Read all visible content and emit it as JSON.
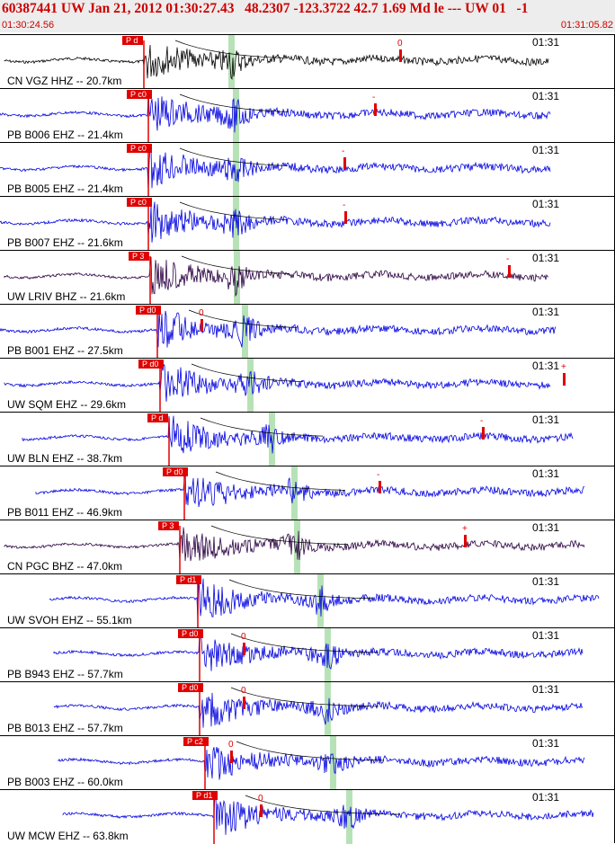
{
  "header": {
    "title": "60387441 UW Jan 21, 2012 01:30:27.43   48.2307 -123.3722 42.7 1.69 Md le --- UW 01   -1",
    "start_time": "01:30:24.56",
    "end_time": "01:31:05.82"
  },
  "traces": [
    {
      "label": "CN VGZ HHZ -- 20.7km",
      "time": "01:31",
      "pick": "P d",
      "marker": "0",
      "color": "#000000"
    },
    {
      "label": "PB B006 EHZ -- 21.4km",
      "time": "01:31",
      "pick": "P c0",
      "marker": "-",
      "color": "#0000e0"
    },
    {
      "label": "PB B005 EHZ -- 21.4km",
      "time": "01:31",
      "pick": "P c0",
      "marker": "-",
      "color": "#0000e0"
    },
    {
      "label": "PB B007 EHZ -- 21.6km",
      "time": "01:31",
      "pick": "P c0",
      "marker": "-",
      "color": "#0000e0"
    },
    {
      "label": "UW LRIV BHZ -- 21.6km",
      "time": "01:31",
      "pick": "P 3",
      "marker": "-",
      "color": "#2a0040"
    },
    {
      "label": "PB B001 EHZ -- 27.5km",
      "time": "01:31",
      "pick": "P d0",
      "marker": "0",
      "color": "#0000e0"
    },
    {
      "label": "UW SQM EHZ -- 29.6km",
      "time": "01:31",
      "pick": "P d0",
      "marker": "+",
      "color": "#0000e0"
    },
    {
      "label": "UW BLN EHZ -- 38.7km",
      "time": "01:31",
      "pick": "P d",
      "marker": "-",
      "color": "#0000e0"
    },
    {
      "label": "PB B011 EHZ -- 46.9km",
      "time": "01:31",
      "pick": "P d0",
      "marker": "-",
      "color": "#0000e0"
    },
    {
      "label": "CN PGC BHZ -- 47.0km",
      "time": "01:31",
      "pick": "P 3",
      "marker": "+",
      "color": "#2a0040"
    },
    {
      "label": "UW SVOH EHZ -- 55.1km",
      "time": "01:31",
      "pick": "P d1",
      "marker": "",
      "color": "#0000e0"
    },
    {
      "label": "PB B943 EHZ -- 57.7km",
      "time": "01:31",
      "pick": "P d0",
      "marker": "0",
      "color": "#0000e0"
    },
    {
      "label": "PB B013 EHZ -- 57.7km",
      "time": "01:31",
      "pick": "P d0",
      "marker": "0",
      "color": "#0000e0"
    },
    {
      "label": "PB B003 EHZ -- 60.0km",
      "time": "01:31",
      "pick": "P c2",
      "marker": "0",
      "color": "#0000e0"
    },
    {
      "label": "UW MCW EHZ -- 63.8km",
      "time": "01:31",
      "pick": "P d1",
      "marker": "0",
      "color": "#0000e0"
    }
  ]
}
